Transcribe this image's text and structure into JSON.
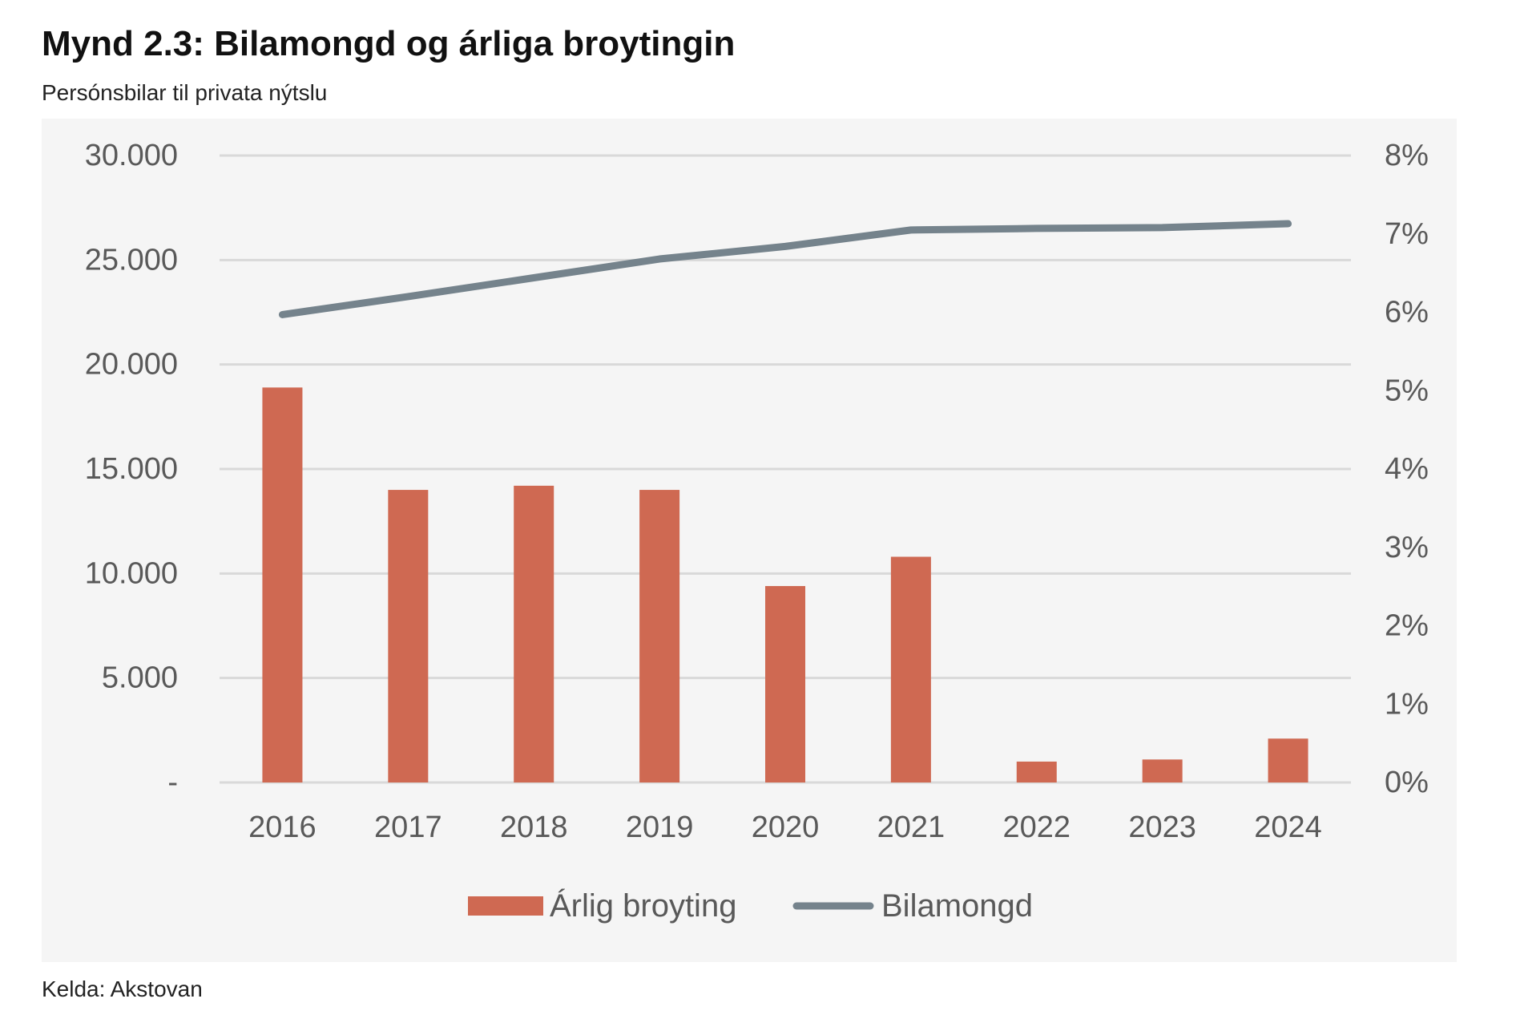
{
  "title": "Mynd 2.3: Bilamongd og árliga broytingin",
  "subtitle": "Persónsbilar til privata nýtslu",
  "source": "Kelda: Akstovan",
  "colors": {
    "bar": "#cf6952",
    "line": "#75838c",
    "grid": "#d9d9d9",
    "panel": "#f5f5f5",
    "tick": "#595959"
  },
  "chart_data": {
    "type": "bar",
    "categories": [
      "2016",
      "2017",
      "2018",
      "2019",
      "2020",
      "2021",
      "2022",
      "2023",
      "2024"
    ],
    "series": [
      {
        "name": "Árlig broyting",
        "type": "bar",
        "axis": "left",
        "values": [
          18900,
          14000,
          14200,
          14000,
          9400,
          10800,
          1000,
          1100,
          2100
        ]
      },
      {
        "name": "Bilamongd",
        "type": "line",
        "axis": "right",
        "values": [
          5.97,
          6.2,
          6.44,
          6.68,
          6.84,
          7.05,
          7.07,
          7.08,
          7.13
        ]
      }
    ],
    "y_left": {
      "ticks": [
        0,
        5000,
        10000,
        15000,
        20000,
        25000,
        30000
      ],
      "tick_labels": [
        "-",
        "5.000",
        "10.000",
        "15.000",
        "20.000",
        "25.000",
        "30.000"
      ],
      "ylim": [
        0,
        30000
      ]
    },
    "y_right": {
      "ticks": [
        0,
        1,
        2,
        3,
        4,
        5,
        6,
        7,
        8
      ],
      "tick_labels": [
        "0%",
        "1%",
        "2%",
        "3%",
        "4%",
        "5%",
        "6%",
        "7%",
        "8%"
      ],
      "ylim": [
        0,
        8
      ]
    },
    "grid": true,
    "legend_position": "bottom"
  }
}
